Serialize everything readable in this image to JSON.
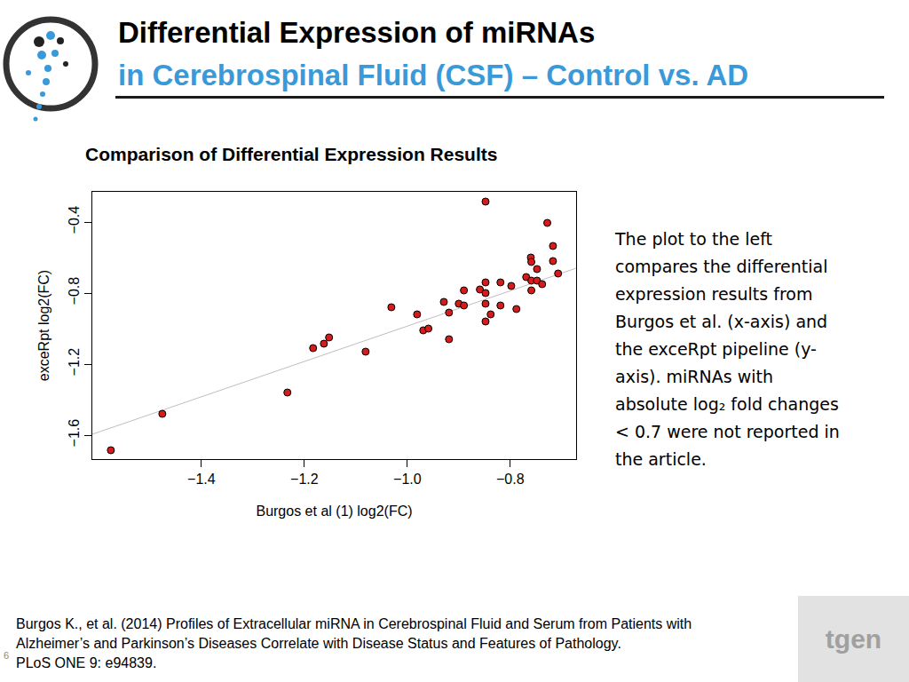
{
  "slide": {
    "title": "Differential Expression of miRNAs",
    "subtitle": "in Cerebrospinal Fluid (CSF) – Control vs. AD",
    "note": [
      "The plot to the left",
      "compares the differential",
      "expression results from",
      "Burgos et al. (x-axis) and",
      "the exceRpt pipeline (y-",
      "axis). miRNAs with",
      "absolute log₂ fold changes",
      "< 0.7 were not reported in",
      "the article."
    ],
    "citation": [
      "Burgos K., et al.  (2014) Profiles of Extracellular miRNA in Cerebrospinal Fluid and Serum from Patients with",
      "Alzheimer’s and Parkinson’s Diseases Correlate with Disease Status and Features of Pathology.",
      "PLoS ONE 9: e94839."
    ],
    "page_number": "6",
    "logo_text": "tgen"
  },
  "chart_data": {
    "type": "scatter",
    "title": "Comparison of Differential Expression Results",
    "x_label": "Burgos et al (1) log2(FC)",
    "y_label": "exceRpt log2(FC)",
    "xlim": [
      -1.612,
      -0.672
    ],
    "ylim": [
      -1.735,
      -0.23
    ],
    "xticks": [
      {
        "value": -1.4,
        "label": "−1.4"
      },
      {
        "value": -1.2,
        "label": "−1.2"
      },
      {
        "value": -1.0,
        "label": "−1.0"
      },
      {
        "value": -0.8,
        "label": "−0.8"
      }
    ],
    "yticks": [
      {
        "value": -1.6,
        "label": "−1.6"
      },
      {
        "value": -1.2,
        "label": "−1.2"
      },
      {
        "value": -0.8,
        "label": "−0.8"
      },
      {
        "value": -0.4,
        "label": "−0.4"
      }
    ],
    "grid": false,
    "series": [
      {
        "type": "scatter",
        "color": "#d41c1c",
        "marker": "circle",
        "x": [
          -1.576,
          -1.476,
          -1.233,
          -1.183,
          -1.162,
          -1.152,
          -1.081,
          -1.031,
          -0.981,
          -0.969,
          -0.959,
          -0.929,
          -0.919,
          -0.919,
          -0.9,
          -0.89,
          -0.89,
          -0.859,
          -0.848,
          -0.848,
          -0.848,
          -0.848,
          -0.848,
          -0.838,
          -0.819,
          -0.819,
          -0.798,
          -0.788,
          -0.769,
          -0.76,
          -0.759,
          -0.759,
          -0.759,
          -0.748,
          -0.748,
          -0.738,
          -0.728,
          -0.717,
          -0.717,
          -0.707
        ],
        "values": [
          -1.685,
          -1.48,
          -1.36,
          -1.11,
          -1.085,
          -1.05,
          -1.13,
          -0.88,
          -0.92,
          -1.01,
          -1.0,
          -0.85,
          -0.91,
          -1.06,
          -0.86,
          -0.785,
          -0.87,
          -0.78,
          -0.285,
          -0.74,
          -0.8,
          -0.86,
          -0.96,
          -0.92,
          -0.74,
          -0.87,
          -0.76,
          -0.89,
          -0.71,
          -0.6,
          -0.625,
          -0.73,
          -0.785,
          -0.665,
          -0.73,
          -0.75,
          -0.405,
          -0.535,
          -0.62,
          -0.69
        ]
      },
      {
        "type": "line",
        "color": "#bebebe",
        "line_style": "solid",
        "x": [
          -1.612,
          -0.672
        ],
        "values": [
          -1.595,
          -0.66
        ]
      }
    ]
  }
}
